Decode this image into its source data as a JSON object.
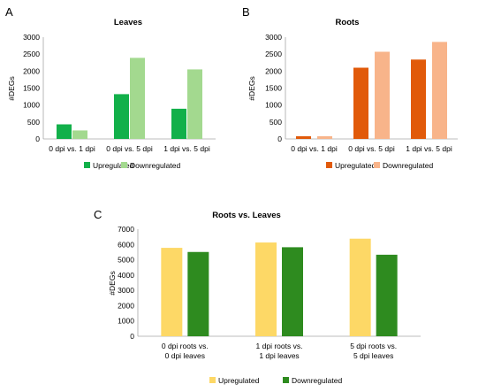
{
  "chart_data": [
    {
      "panel": "A",
      "type": "bar",
      "title": "Leaves",
      "ylabel": "#DEGs",
      "xlabel": "",
      "ylim": [
        0,
        3000
      ],
      "yticks": [
        0,
        500,
        1000,
        1500,
        2000,
        2500,
        3000
      ],
      "categories": [
        "0 dpi vs. 1 dpi",
        "0 dpi vs. 5 dpi",
        "1 dpi vs. 5 dpi"
      ],
      "series": [
        {
          "name": "Upregulated",
          "values": [
            430,
            1320,
            890
          ],
          "color": "#12b04a"
        },
        {
          "name": "Downregulated",
          "values": [
            250,
            2390,
            2050
          ],
          "color": "#a3d98f"
        }
      ],
      "legend": "bottom",
      "grid": false
    },
    {
      "panel": "B",
      "type": "bar",
      "title": "Roots",
      "ylabel": "#DEGs",
      "xlabel": "",
      "ylim": [
        0,
        3000
      ],
      "yticks": [
        0,
        500,
        1000,
        1500,
        2000,
        2500,
        3000
      ],
      "categories": [
        "0 dpi vs. 1 dpi",
        "0 dpi vs. 5 dpi",
        "1 dpi vs. 5 dpi"
      ],
      "series": [
        {
          "name": "Upregulated",
          "values": [
            80,
            2100,
            2340
          ],
          "color": "#e15a0a"
        },
        {
          "name": "Downregulated",
          "values": [
            80,
            2570,
            2860
          ],
          "color": "#f8b48a"
        }
      ],
      "legend": "bottom",
      "grid": false
    },
    {
      "panel": "C",
      "type": "bar",
      "title": "Roots vs. Leaves",
      "ylabel": "#DEGs",
      "xlabel": "",
      "ylim": [
        0,
        7000
      ],
      "yticks": [
        0,
        1000,
        2000,
        3000,
        4000,
        5000,
        6000,
        7000
      ],
      "categories": [
        [
          "0 dpi roots vs.",
          "0 dpi leaves"
        ],
        [
          "1 dpi roots vs.",
          "1 dpi leaves"
        ],
        [
          "5 dpi roots vs.",
          "5 dpi leaves"
        ]
      ],
      "series": [
        {
          "name": "Upregulated",
          "values": [
            5780,
            6130,
            6380
          ],
          "color": "#fdd866"
        },
        {
          "name": "Downregulated",
          "values": [
            5510,
            5820,
            5330
          ],
          "color": "#2e8b1f"
        }
      ],
      "legend": "bottom",
      "grid": false
    }
  ]
}
